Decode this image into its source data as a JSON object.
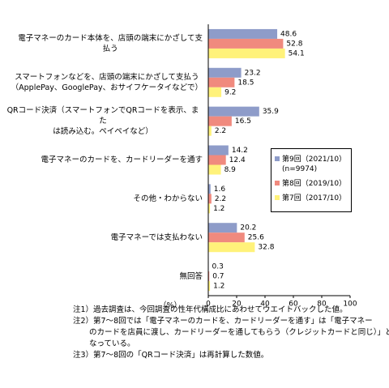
{
  "chart_data": {
    "type": "bar",
    "orientation": "horizontal",
    "categories": [
      "電子マネーのカード本体を、店頭の端末にかざして支\n払う",
      "スマートフォンなどを、店頭の端末にかざして支払う\n（ApplePay、GooglePay、おサイフケータイなどで）",
      "QRコード決済（スマートフォンでQRコードを表示、また\nは読み込む。ペイペイなど）",
      "電子マネーのカードを、カードリーダーを通す",
      "その他・わからない",
      "電子マネーでは支払わない",
      "無回答"
    ],
    "series": [
      {
        "name": "第9回（2021/10）\n(n=9974)",
        "color": "#8e9cc9",
        "values": [
          48.6,
          23.2,
          35.9,
          14.2,
          1.6,
          20.2,
          0.3
        ]
      },
      {
        "name": "第8回（2019/10）",
        "color": "#f08a7e",
        "values": [
          52.8,
          18.5,
          16.5,
          12.4,
          2.2,
          25.6,
          0.7
        ]
      },
      {
        "name": "第7回（2017/10）",
        "color": "#fff27a",
        "values": [
          54.1,
          9.2,
          2.2,
          8.9,
          1.2,
          32.8,
          1.2
        ]
      }
    ],
    "xlim": [
      0,
      100
    ],
    "xticks": [
      0,
      20,
      40,
      60,
      80,
      100
    ],
    "x_label": "（%）",
    "legend": "right",
    "grid": false,
    "notes": [
      "注1）過去調査は、今回調査の性年代構成比にあわせてウエイトバックした値。",
      "注2）第7～8回では「電子マネーのカードを、カードリーダーを通す」は「電子マネー",
      "のカードを店員に渡し、カードリーダーを通してもらう（クレジットカードと同じ）」と",
      "なっている。",
      "注3）第7～8回の「QRコード決済」は再計算した数値。"
    ]
  }
}
